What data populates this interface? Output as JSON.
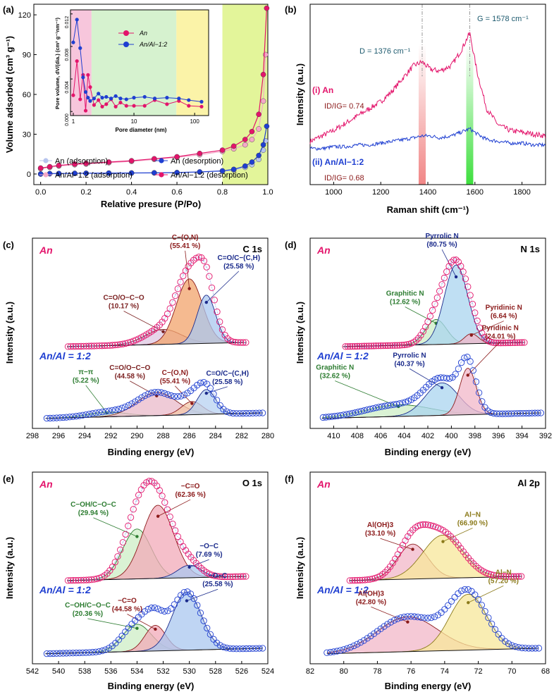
{
  "chart_data": [
    {
      "id": "a",
      "type": "line",
      "panel_label": "(a)",
      "xlabel": "Relative presure (P/Po)",
      "ylabel": "Volume adsorbed (cm³ g⁻¹)",
      "xlim": [
        -0.03,
        1.0
      ],
      "ylim": [
        -8,
        128
      ],
      "xticks": [
        "0.0",
        "0.2",
        "0.4",
        "0.6",
        "0.8",
        "1.0"
      ],
      "yticks": [
        "0",
        "30",
        "60",
        "90",
        "120"
      ],
      "shaded_regions": [
        {
          "from": 0.8,
          "to": 1.0,
          "color": "#e3f59a"
        }
      ],
      "series": [
        {
          "name": "An (adsorption)",
          "color": "#b7c4ee",
          "x": [
            0.0,
            0.04,
            0.08,
            0.15,
            0.2,
            0.3,
            0.4,
            0.5,
            0.6,
            0.7,
            0.8,
            0.85,
            0.9,
            0.93,
            0.96,
            0.98,
            0.99
          ],
          "y": [
            0,
            0.2,
            0.3,
            0.4,
            0.5,
            0.6,
            0.7,
            0.8,
            1.0,
            1.4,
            2,
            3,
            5,
            7,
            11,
            18,
            25
          ]
        },
        {
          "name": "An (desorption)",
          "color": "#1f3fd1",
          "x": [
            0.0,
            0.04,
            0.08,
            0.15,
            0.2,
            0.3,
            0.4,
            0.5,
            0.6,
            0.7,
            0.8,
            0.85,
            0.9,
            0.93,
            0.96,
            0.98,
            0.995
          ],
          "y": [
            0,
            0.3,
            0.4,
            0.5,
            0.6,
            0.7,
            0.8,
            0.9,
            1.1,
            1.6,
            2.4,
            3.5,
            6,
            9,
            14,
            22,
            36
          ]
        },
        {
          "name": "An/Al−1:2 (adsorption)",
          "color": "#f4a9c8",
          "x": [
            0.0,
            0.04,
            0.08,
            0.15,
            0.2,
            0.3,
            0.4,
            0.5,
            0.6,
            0.7,
            0.8,
            0.85,
            0.9,
            0.93,
            0.96,
            0.98,
            0.99
          ],
          "y": [
            4,
            5,
            6,
            7,
            7.5,
            8.5,
            9.5,
            11,
            12.5,
            14.5,
            17,
            19,
            22,
            26,
            34,
            55,
            90
          ]
        },
        {
          "name": "An/Al−1:2 (desorption)",
          "color": "#e3146b",
          "x": [
            0.0,
            0.04,
            0.08,
            0.15,
            0.2,
            0.3,
            0.4,
            0.5,
            0.6,
            0.7,
            0.8,
            0.85,
            0.9,
            0.93,
            0.96,
            0.98,
            0.995
          ],
          "y": [
            4.5,
            5.5,
            6.5,
            7.5,
            8,
            9,
            10,
            11.5,
            13,
            15.5,
            18,
            21,
            26,
            32,
            45,
            75,
            125
          ]
        }
      ],
      "legend": [
        "An (adsorption)",
        "An (desorption)",
        "An/Al−1:2 (adsorption)",
        "An/Al−1:2 (desorption)"
      ],
      "inset": {
        "type": "line",
        "xlabel": "Pore diameter (nm)",
        "ylabel": "Pore volume, dV/(dia.) (cm³ g⁻¹nm⁻¹)",
        "xscale": "log",
        "xlim": [
          0.9,
          170
        ],
        "ylim": [
          -0.0005,
          0.0125
        ],
        "xticks": [
          "1",
          "10",
          "100"
        ],
        "yticks": [
          "0.000",
          "0.004",
          "0.008",
          "0.012"
        ],
        "shaded_regions": [
          {
            "from": 0.9,
            "to": 2,
            "color": "#f7c6dc"
          },
          {
            "from": 2,
            "to": 50,
            "color": "#d6f2cf"
          },
          {
            "from": 50,
            "to": 170,
            "color": "#fbf3a8"
          }
        ],
        "series": [
          {
            "name": "An",
            "color": "#e3146b",
            "x": [
              1.0,
              1.15,
              1.3,
              1.45,
              1.6,
              1.75,
              1.9,
              2.2,
              2.6,
              3.0,
              3.5,
              4.2,
              5,
              6,
              7.5,
              10,
              15,
              22,
              35,
              55,
              80,
              130
            ],
            "y": [
              0.002,
              0.0062,
              0.0015,
              0.0045,
              0.0001,
              0.0045,
              0.003,
              0.0008,
              0.0014,
              0.0006,
              0.0009,
              0.0015,
              0.0006,
              0.0011,
              0.0007,
              0.0007,
              0.0007,
              0.0014,
              0.0009,
              0.0013,
              0.0007,
              0.0006
            ]
          },
          {
            "name": "An/Al−1:2",
            "color": "#1f3fd1",
            "x": [
              1.0,
              1.15,
              1.3,
              1.45,
              1.6,
              1.75,
              1.9,
              2.2,
              2.6,
              3.0,
              3.5,
              4.2,
              5,
              6,
              7.5,
              10,
              15,
              22,
              35,
              55,
              80,
              130
            ],
            "y": [
              0.0085,
              0.0113,
              0.0078,
              0.0042,
              0.0024,
              0.0017,
              0.0013,
              0.0016,
              0.0022,
              0.0017,
              0.0018,
              0.0016,
              0.0019,
              0.0016,
              0.0015,
              0.0017,
              0.0018,
              0.0016,
              0.0017,
              0.0016,
              0.0014,
              0.0012
            ]
          }
        ],
        "legend": [
          "An",
          "An/Al−1:2"
        ]
      }
    },
    {
      "id": "b",
      "type": "line",
      "panel_label": "(b)",
      "xlabel": "Raman shift (cm⁻¹)",
      "ylabel": "Intensity (a.u.)",
      "xlim": [
        900,
        1900
      ],
      "ylim": [
        0,
        1
      ],
      "xticks": [
        "1000",
        "1200",
        "1400",
        "1600",
        "1800"
      ],
      "bands": [
        {
          "center": 1376,
          "color": "#f08080"
        },
        {
          "center": 1578,
          "color": "#33dd33"
        }
      ],
      "series": [
        {
          "name": "(i) An",
          "color": "#e3146b",
          "x": [
            900,
            950,
            1000,
            1050,
            1100,
            1150,
            1200,
            1250,
            1300,
            1340,
            1376,
            1410,
            1450,
            1500,
            1540,
            1578,
            1610,
            1650,
            1700,
            1750,
            1800,
            1850,
            1900
          ],
          "y": [
            0.24,
            0.27,
            0.3,
            0.34,
            0.38,
            0.42,
            0.46,
            0.52,
            0.6,
            0.66,
            0.68,
            0.64,
            0.63,
            0.66,
            0.74,
            0.84,
            0.62,
            0.42,
            0.33,
            0.3,
            0.29,
            0.28,
            0.27
          ]
        },
        {
          "name": "(ii) An/Al−1:2",
          "color": "#1f3fd1",
          "x": [
            900,
            950,
            1000,
            1050,
            1100,
            1150,
            1200,
            1250,
            1300,
            1340,
            1376,
            1410,
            1450,
            1500,
            1540,
            1578,
            1610,
            1650,
            1700,
            1750,
            1800,
            1850,
            1900
          ],
          "y": [
            0.2,
            0.2,
            0.21,
            0.21,
            0.22,
            0.22,
            0.23,
            0.24,
            0.25,
            0.26,
            0.27,
            0.27,
            0.26,
            0.27,
            0.29,
            0.31,
            0.28,
            0.25,
            0.24,
            0.23,
            0.23,
            0.22,
            0.22
          ]
        }
      ],
      "annotations": {
        "d_band": "D = 1376 cm⁻¹",
        "g_band": "G = 1578 cm⁻¹",
        "label_i": "(i) An",
        "ratio_i": "ID/IG= 0.74",
        "label_ii": "(ii) An/Al−1:2",
        "ratio_ii": "ID/IG= 0.68"
      }
    },
    {
      "id": "c",
      "type": "area",
      "panel_label": "(c)",
      "core_level": "C 1s",
      "xlabel": "Binding energy (eV)",
      "ylabel": "Intensity (a.u.)",
      "xlim": [
        298,
        280
      ],
      "xticks": [
        "298",
        "296",
        "294",
        "292",
        "290",
        "288",
        "286",
        "284",
        "282",
        "280"
      ],
      "top": {
        "sample": "An",
        "peaks": [
          {
            "label": "C=O/O−C−O",
            "pct": "(10.17 %)",
            "center": 288.0,
            "height": 0.18,
            "width": 1.4,
            "color": "#ddc7e2",
            "line": "#7a1f1f"
          },
          {
            "label": "C−(O,N)",
            "pct": "(55.41 %)",
            "center": 286.0,
            "height": 0.78,
            "width": 1.0,
            "color": "#f1a36b",
            "line": "#8b1a1a"
          },
          {
            "label": "C=O/C−(C,H)",
            "pct": "(25.58 %)",
            "center": 284.7,
            "height": 0.58,
            "width": 0.7,
            "color": "#a9c7ef",
            "line": "#1a2a8b"
          }
        ]
      },
      "bottom": {
        "sample": "An/Al = 1:2",
        "peaks": [
          {
            "label": "π−π",
            "pct": "(5.22 %)",
            "center": 292.3,
            "height": 0.06,
            "width": 1.5,
            "color": "#cfeccd",
            "line": "#2e7d32"
          },
          {
            "label": "C=O/O−C−O",
            "pct": "(44.58 %)",
            "center": 288.5,
            "height": 0.3,
            "width": 1.5,
            "color": "#e9b9c9",
            "line": "#7a1f1f"
          },
          {
            "label": "C−(O,N)",
            "pct": "(55.41 %)",
            "center": 285.8,
            "height": 0.17,
            "width": 0.8,
            "color": "#f3c7a8",
            "line": "#8b1a1a"
          },
          {
            "label": "C=O/C−(C,H)",
            "pct": "(25.58 %)",
            "center": 284.7,
            "height": 0.32,
            "width": 0.7,
            "color": "#b7d1f2",
            "line": "#1a2a8b"
          }
        ]
      }
    },
    {
      "id": "d",
      "type": "area",
      "panel_label": "(d)",
      "core_level": "N 1s",
      "xlabel": "Binding energy (eV)",
      "ylabel": "Intensity (a.u.)",
      "xlim": [
        412,
        392
      ],
      "xticks": [
        "410",
        "408",
        "406",
        "404",
        "402",
        "400",
        "398",
        "396",
        "394",
        "392"
      ],
      "top": {
        "sample": "An",
        "peaks": [
          {
            "label": "Graphitic N",
            "pct": "(12.62 %)",
            "center": 401.3,
            "height": 0.3,
            "width": 0.9,
            "color": "#cdeec5",
            "line": "#2e7d32"
          },
          {
            "label": "Pyrrolic N",
            "pct": "(80.75 %)",
            "center": 399.6,
            "height": 0.95,
            "width": 1.0,
            "color": "#a9d4ef",
            "line": "#1a2a8b"
          },
          {
            "label": "Pyridinic N",
            "pct": "(6.64 %)",
            "center": 398.3,
            "height": 0.12,
            "width": 0.6,
            "color": "#f2b7c8",
            "line": "#8b1a1a"
          }
        ]
      },
      "bottom": {
        "sample": "An/Al = 1:2",
        "peaks": [
          {
            "label": "Graphitic N",
            "pct": "(32.62 %)",
            "center": 404.5,
            "height": 0.15,
            "width": 2.8,
            "color": "#cdeec5",
            "line": "#2e7d32"
          },
          {
            "label": "Pyrrolic N",
            "pct": "(40.37 %)",
            "center": 400.8,
            "height": 0.42,
            "width": 1.4,
            "color": "#a9d4ef",
            "line": "#1a2a8b"
          },
          {
            "label": "Pyridinic N",
            "pct": "(24.01 %)",
            "center": 398.6,
            "height": 0.6,
            "width": 0.7,
            "color": "#f2b7c8",
            "line": "#8b1a1a"
          }
        ]
      }
    },
    {
      "id": "e",
      "type": "area",
      "panel_label": "(e)",
      "core_level": "O 1s",
      "xlabel": "Binding energy (eV)",
      "ylabel": "Intensity (a.u.)",
      "xlim": [
        542,
        524
      ],
      "xticks": [
        "542",
        "540",
        "538",
        "536",
        "534",
        "532",
        "530",
        "528",
        "526",
        "524"
      ],
      "top": {
        "sample": "An",
        "peaks": [
          {
            "label": "C−OH/C−O−C",
            "pct": "(29.94 %)",
            "center": 534.0,
            "height": 0.6,
            "width": 1.1,
            "color": "#cdeec5",
            "line": "#2e7d32"
          },
          {
            "label": "−C=O",
            "pct": "(62.36 %)",
            "center": 532.4,
            "height": 0.88,
            "width": 1.2,
            "color": "#f2a9b8",
            "line": "#8b1a1a"
          },
          {
            "label": "−O−C",
            "pct": "(7.69 %)",
            "center": 530.0,
            "height": 0.15,
            "width": 0.9,
            "color": "#a9c7ef",
            "line": "#1a2a8b"
          }
        ]
      },
      "bottom": {
        "sample": "An/Al = 1:2",
        "peaks": [
          {
            "label": "C−OH/C−O−C",
            "pct": "(20.36 %)",
            "center": 534.0,
            "height": 0.35,
            "width": 1.1,
            "color": "#cdeec5",
            "line": "#2e7d32"
          },
          {
            "label": "−C=O",
            "pct": "(44.58 %)",
            "center": 532.6,
            "height": 0.33,
            "width": 0.8,
            "color": "#f2a9b8",
            "line": "#8b1a1a"
          },
          {
            "label": "−O−C",
            "pct": "(25.58 %)",
            "center": 530.2,
            "height": 0.75,
            "width": 1.1,
            "color": "#a9c7ef",
            "line": "#1a2a8b"
          }
        ]
      }
    },
    {
      "id": "f",
      "type": "area",
      "panel_label": "(f)",
      "core_level": "Al 2p",
      "xlabel": "Binding energy (eV)",
      "ylabel": "Intensity (a.u.)",
      "xlim": [
        82,
        68
      ],
      "xticks": [
        "82",
        "80",
        "78",
        "76",
        "74",
        "72",
        "70",
        "68"
      ],
      "top": {
        "sample": "An",
        "peaks": [
          {
            "label": "Al(OH)3",
            "pct": "(33.10 %)",
            "center": 75.9,
            "height": 0.42,
            "width": 0.9,
            "color": "#f2b7c8",
            "line": "#8b1a1a"
          },
          {
            "label": "Al−N",
            "pct": "(66.90 %)",
            "center": 74.1,
            "height": 0.52,
            "width": 1.2,
            "color": "#f7e79a",
            "line": "#8b7a1a"
          }
        ]
      },
      "bottom": {
        "sample": "An/Al = 1:2",
        "peaks": [
          {
            "label": "Al(OH)3",
            "pct": "(42.80 %)",
            "center": 76.2,
            "height": 0.45,
            "width": 1.8,
            "color": "#f2b7c8",
            "line": "#8b1a1a"
          },
          {
            "label": "Al−N",
            "pct": "(57.20 %)",
            "center": 72.6,
            "height": 0.72,
            "width": 1.1,
            "color": "#f7e79a",
            "line": "#8b7a1a"
          }
        ]
      }
    }
  ]
}
